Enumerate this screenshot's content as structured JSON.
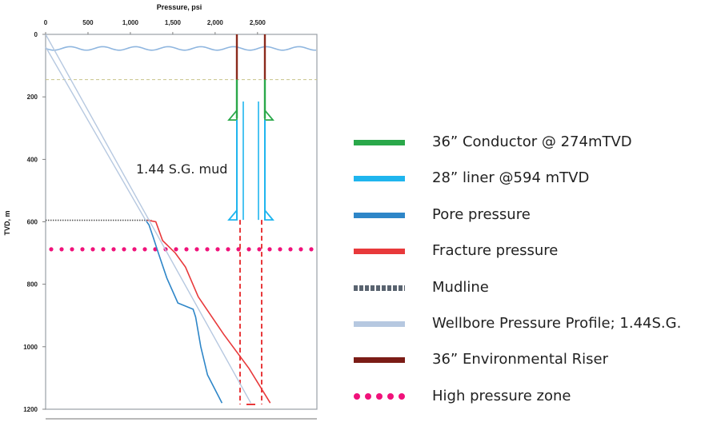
{
  "chart_data": {
    "type": "line",
    "title": "",
    "xlabel": "Pressure, psi",
    "ylabel": "TVD, m",
    "xlim": [
      0,
      3200
    ],
    "ylim": [
      0,
      1200
    ],
    "x_ticks": [
      "0",
      "500",
      "1,000",
      "1,500",
      "2,000",
      "2,500"
    ],
    "x_tick_values": [
      0,
      500,
      1000,
      1500,
      2000,
      2500
    ],
    "y_ticks": [
      "0",
      "200",
      "400",
      "600",
      "800",
      "1000",
      "1200"
    ],
    "y_tick_values": [
      0,
      200,
      400,
      600,
      800,
      1000,
      1200
    ],
    "annotation": "1.44 S.G. mud",
    "series": [
      {
        "name": "Pore pressure",
        "color": "#2e86c8",
        "points": [
          [
            1180,
            595
          ],
          [
            1220,
            610
          ],
          [
            1270,
            650
          ],
          [
            1330,
            700
          ],
          [
            1430,
            780
          ],
          [
            1560,
            860
          ],
          [
            1740,
            880
          ],
          [
            1770,
            905
          ],
          [
            1830,
            1000
          ],
          [
            1910,
            1090
          ],
          [
            2080,
            1180
          ]
        ]
      },
      {
        "name": "Fracture pressure",
        "color": "#e8393b",
        "points": [
          [
            1200,
            595
          ],
          [
            1300,
            600
          ],
          [
            1380,
            660
          ],
          [
            1530,
            700
          ],
          [
            1650,
            745
          ],
          [
            1800,
            840
          ],
          [
            2100,
            960
          ],
          [
            2400,
            1070
          ],
          [
            2650,
            1180
          ]
        ]
      },
      {
        "name": "Wellbore Pressure Profile; 1.44S.G.",
        "color": "#b6c8e0",
        "points": [
          [
            0,
            0
          ],
          [
            2420,
            1180
          ]
        ]
      },
      {
        "name": "Wellbore Pressure Profile upper",
        "color": "#b6c8e0",
        "points": [
          [
            0,
            40
          ],
          [
            1190,
            600
          ]
        ]
      }
    ],
    "reference_lines": {
      "mudline_depth": 595,
      "high_pressure_zone_depth": 688,
      "sea_surface_depth": 45,
      "riser_base_depth": 145
    },
    "legend": [
      {
        "label": "36” Conductor @ 274mTVD",
        "color": "#2aa84a",
        "style": "solid"
      },
      {
        "label": "28” liner @594 mTVD",
        "color": "#1fb5ee",
        "style": "solid"
      },
      {
        "label": "Pore pressure",
        "color": "#2e86c8",
        "style": "solid"
      },
      {
        "label": "Fracture pressure",
        "color": "#e8393b",
        "style": "solid"
      },
      {
        "label": "Mudline",
        "color": "#5a6470",
        "style": "dotted"
      },
      {
        "label": "Wellbore Pressure Profile; 1.44S.G.",
        "color": "#b6c8e0",
        "style": "solid"
      },
      {
        "label": "36” Environmental Riser",
        "color": "#7b1c16",
        "style": "solid"
      },
      {
        "label": "High pressure zone",
        "color": "#f0127a",
        "style": "dots"
      }
    ]
  }
}
